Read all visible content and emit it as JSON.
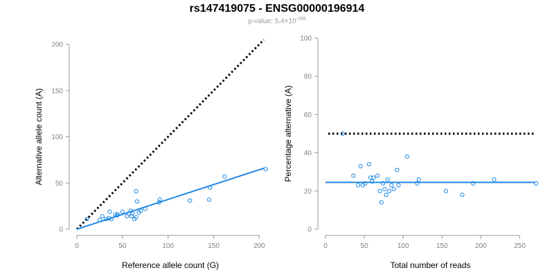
{
  "header": {
    "title": "rs147419075 - ENSG00000196914",
    "subtitle_prefix": "p-value: 5.4×10",
    "subtitle_exponent": "-169"
  },
  "colors": {
    "points": "#1e88e5",
    "fit_line": "#1e88e5",
    "reference_line": "#000000",
    "axis": "#999999"
  },
  "chart_data": [
    {
      "type": "scatter",
      "xlabel": "Reference allele count (G)",
      "ylabel": "Alternative allele count (A)",
      "xlim": [
        0,
        205
      ],
      "ylim": [
        0,
        200
      ],
      "xticks": [
        0,
        50,
        100,
        150,
        200
      ],
      "yticks": [
        0,
        50,
        100,
        150,
        200
      ],
      "grid": false,
      "reference_line": {
        "style": "dotted",
        "from": [
          0,
          0
        ],
        "to": [
          205,
          205
        ]
      },
      "fit_line": {
        "from": [
          0,
          0
        ],
        "to": [
          205,
          66
        ]
      },
      "series": [
        {
          "points": [
            [
              11,
              11
            ],
            [
              25,
              10
            ],
            [
              28,
              14
            ],
            [
              32,
              11
            ],
            [
              35,
              12
            ],
            [
              36,
              19
            ],
            [
              38,
              11
            ],
            [
              42,
              16
            ],
            [
              44,
              15
            ],
            [
              45,
              16
            ],
            [
              50,
              19
            ],
            [
              55,
              14
            ],
            [
              57,
              17
            ],
            [
              59,
              20
            ],
            [
              60,
              14
            ],
            [
              61,
              17
            ],
            [
              63,
              11
            ],
            [
              65,
              13
            ],
            [
              65,
              41
            ],
            [
              66,
              30
            ],
            [
              68,
              18
            ],
            [
              70,
              20
            ],
            [
              75,
              22
            ],
            [
              90,
              29
            ],
            [
              91,
              32
            ],
            [
              124,
              31
            ],
            [
              145,
              32
            ],
            [
              146,
              45
            ],
            [
              162,
              57
            ],
            [
              207,
              65
            ]
          ]
        }
      ]
    },
    {
      "type": "scatter",
      "xlabel": "Total number of reads",
      "ylabel": "Percentage alternative (A)",
      "xlim": [
        0,
        270
      ],
      "ylim": [
        0,
        100
      ],
      "xticks": [
        0,
        50,
        100,
        150,
        200,
        250
      ],
      "yticks": [
        0,
        20,
        40,
        60,
        80,
        100
      ],
      "grid": false,
      "reference_line": {
        "style": "dotted",
        "y": 50
      },
      "fit_line": {
        "y": 24.5
      },
      "series": [
        {
          "points": [
            [
              22,
              50
            ],
            [
              36,
              28
            ],
            [
              42,
              23
            ],
            [
              45,
              33
            ],
            [
              48,
              23
            ],
            [
              51,
              24
            ],
            [
              56,
              34
            ],
            [
              58,
              27
            ],
            [
              60,
              25
            ],
            [
              62,
              27
            ],
            [
              67,
              28
            ],
            [
              70,
              20
            ],
            [
              72,
              14
            ],
            [
              74,
              24
            ],
            [
              76,
              21
            ],
            [
              78,
              18
            ],
            [
              80,
              26
            ],
            [
              82,
              20
            ],
            [
              85,
              23
            ],
            [
              88,
              21
            ],
            [
              92,
              31
            ],
            [
              94,
              23
            ],
            [
              105,
              38
            ],
            [
              118,
              24
            ],
            [
              120,
              26
            ],
            [
              155,
              20
            ],
            [
              176,
              18
            ],
            [
              190,
              24
            ],
            [
              217,
              26
            ],
            [
              271,
              24
            ]
          ]
        }
      ]
    }
  ]
}
